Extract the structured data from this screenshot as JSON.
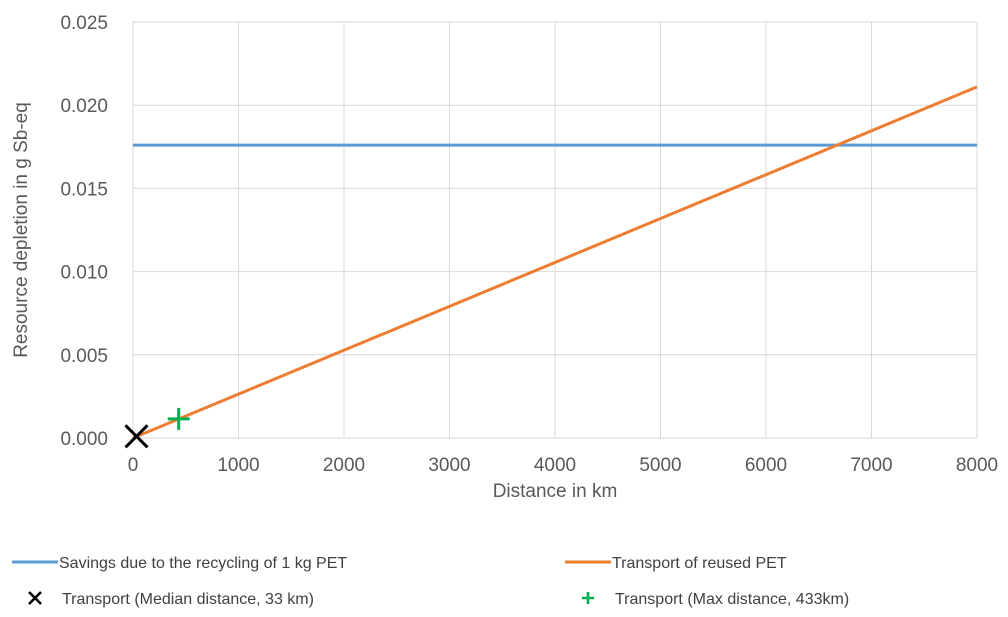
{
  "chart_data": {
    "type": "line",
    "title": "",
    "xlabel": "Distance in km",
    "ylabel": "Resource depletion in g Sb-eq",
    "xlim": [
      0,
      8000
    ],
    "ylim": [
      0,
      0.025
    ],
    "x_ticks": [
      "0",
      "1000",
      "2000",
      "3000",
      "4000",
      "5000",
      "6000",
      "7000",
      "8000"
    ],
    "y_ticks": [
      "0.000",
      "0.005",
      "0.010",
      "0.015",
      "0.020",
      "0.025"
    ],
    "grid": true,
    "legend_position": "bottom",
    "series": [
      {
        "name": "Savings due to the recycling of 1 kg PET",
        "kind": "line",
        "color": "#5b9bd5",
        "x": [
          0,
          8000
        ],
        "y": [
          0.0176,
          0.0176
        ]
      },
      {
        "name": "Transport of reused PET",
        "kind": "line",
        "color": "#ed7d31",
        "x": [
          0,
          8000
        ],
        "y": [
          0.0,
          0.0211
        ]
      },
      {
        "name": "Transport (Median distance, 33 km)",
        "kind": "marker",
        "marker": "x",
        "color": "#000000",
        "x": [
          33
        ],
        "y": [
          0.0001
        ]
      },
      {
        "name": "Transport (Max distance, 433km)",
        "kind": "marker",
        "marker": "plus",
        "color": "#00b050",
        "x": [
          433
        ],
        "y": [
          0.00115
        ]
      }
    ]
  }
}
